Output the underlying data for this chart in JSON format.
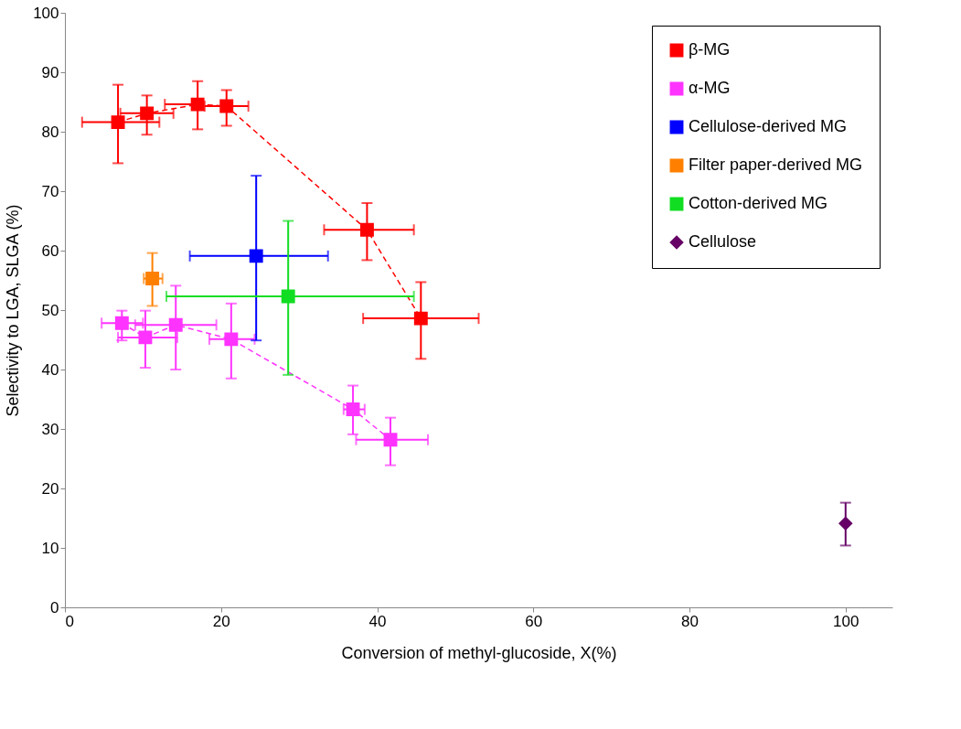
{
  "chart_data": {
    "type": "scatter",
    "xlabel": "Conversion of methyl-glucoside, X(%)",
    "ylabel": "Selectivity to LGA, SLGA (%)",
    "xlim": [
      0,
      106
    ],
    "xticks": [
      0,
      20,
      40,
      60,
      80,
      100
    ],
    "ylim": [
      0,
      100
    ],
    "yticks": [
      0,
      10,
      20,
      30,
      40,
      50,
      60,
      70,
      80,
      90,
      100
    ],
    "grid": false,
    "legend": "top right",
    "series": [
      {
        "name": "β-MG",
        "type": "line",
        "color": "#ff0000",
        "marker": "square",
        "line_style": "dashed",
        "x": [
          6.8,
          10.5,
          17.0,
          20.7,
          38.7,
          45.6
        ],
        "values": [
          81.6,
          83.1,
          84.6,
          84.3,
          63.5,
          48.6
        ],
        "errors": [
          [
            74.7,
            87.9
          ],
          [
            79.5,
            86.1
          ],
          [
            80.4,
            88.5
          ],
          [
            81.0,
            87.0
          ],
          [
            58.4,
            68.0
          ],
          [
            41.8,
            54.7
          ]
        ],
        "xerrors": [
          [
            2.2,
            12.1
          ],
          [
            7.1,
            13.9
          ],
          [
            12.8,
            17.0
          ],
          [
            17.9,
            23.5
          ],
          [
            33.2,
            44.7
          ],
          [
            38.2,
            53.0
          ]
        ]
      },
      {
        "name": "α-MG",
        "type": "line",
        "color": "#ff33ff",
        "marker": "square",
        "line_style": "dashed",
        "x": [
          7.3,
          10.3,
          14.2,
          21.3,
          36.9,
          41.7
        ],
        "values": [
          47.8,
          45.4,
          47.5,
          45.1,
          33.3,
          28.2
        ],
        "errors": [
          [
            44.9,
            49.9
          ],
          [
            40.3,
            49.9
          ],
          [
            40.0,
            54.1
          ],
          [
            38.5,
            51.1
          ],
          [
            29.1,
            37.3
          ],
          [
            23.9,
            31.9
          ]
        ],
        "xerrors": [
          [
            4.7,
            10.0
          ],
          [
            6.8,
            14.4
          ],
          [
            9.0,
            19.4
          ],
          [
            18.5,
            24.3
          ],
          [
            35.7,
            38.4
          ],
          [
            37.3,
            46.5
          ]
        ]
      },
      {
        "name": "Cellulose-derived MG",
        "color": "#0000ff",
        "marker": "square",
        "x": [
          24.5
        ],
        "values": [
          59.1
        ],
        "errors": [
          [
            44.9,
            72.6
          ]
        ],
        "xerrors": [
          [
            16.0,
            33.7
          ]
        ]
      },
      {
        "name": "Filter paper-derived MG",
        "color": "#ff8000",
        "marker": "square",
        "x": [
          11.2
        ],
        "values": [
          55.3
        ],
        "errors": [
          [
            50.7,
            59.6
          ]
        ],
        "xerrors": [
          [
            10.1,
            12.5
          ]
        ]
      },
      {
        "name": "Cotton-derived MG",
        "color": "#11dd22",
        "marker": "square",
        "x": [
          28.6
        ],
        "values": [
          52.3
        ],
        "errors": [
          [
            39.1,
            65.0
          ]
        ],
        "xerrors": [
          [
            13.0,
            44.7
          ]
        ]
      },
      {
        "name": "Cellulose",
        "color": "#660066",
        "marker": "diamond",
        "x": [
          100
        ],
        "values": [
          14.1
        ],
        "errors": [
          [
            10.4,
            17.6
          ]
        ]
      }
    ]
  }
}
